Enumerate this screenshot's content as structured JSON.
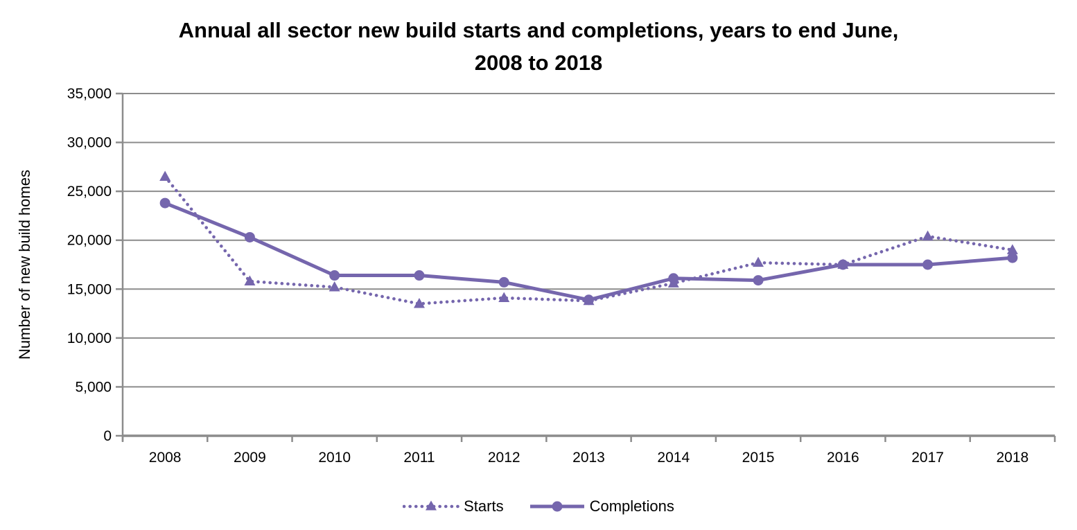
{
  "title": {
    "line1": "Annual all sector new build starts and completions, years to end June,",
    "line2": "2008 to 2018"
  },
  "chart_data": {
    "type": "line",
    "title": "Annual all sector new build starts and completions, years to end June, 2008 to 2018",
    "ylabel": "Number of new build homes",
    "xlabel": "",
    "categories": [
      "2008",
      "2009",
      "2010",
      "2011",
      "2012",
      "2013",
      "2014",
      "2015",
      "2016",
      "2017",
      "2018"
    ],
    "series": [
      {
        "name": "Starts",
        "line_style": "dotted",
        "marker": "triangle",
        "values": [
          26500,
          15800,
          15200,
          13500,
          14100,
          13800,
          15600,
          17700,
          17500,
          20400,
          19000
        ]
      },
      {
        "name": "Completions",
        "line_style": "solid",
        "marker": "circle",
        "values": [
          23800,
          20300,
          16400,
          16400,
          15700,
          13900,
          16100,
          15900,
          17500,
          17500,
          18200
        ]
      }
    ],
    "ylim": [
      0,
      35000
    ],
    "ytick_step": 5000,
    "ytick_labels": [
      "0",
      "5,000",
      "10,000",
      "15,000",
      "20,000",
      "25,000",
      "30,000",
      "35,000"
    ],
    "grid": "horizontal",
    "legend_position": "bottom",
    "colors": {
      "series": "#7566AD",
      "gridline": "#8C8C8C",
      "axis": "#8C8C8C",
      "text": "#000000",
      "background": "#FFFFFF"
    }
  },
  "legend": {
    "items": [
      {
        "label": "Starts"
      },
      {
        "label": "Completions"
      }
    ]
  }
}
